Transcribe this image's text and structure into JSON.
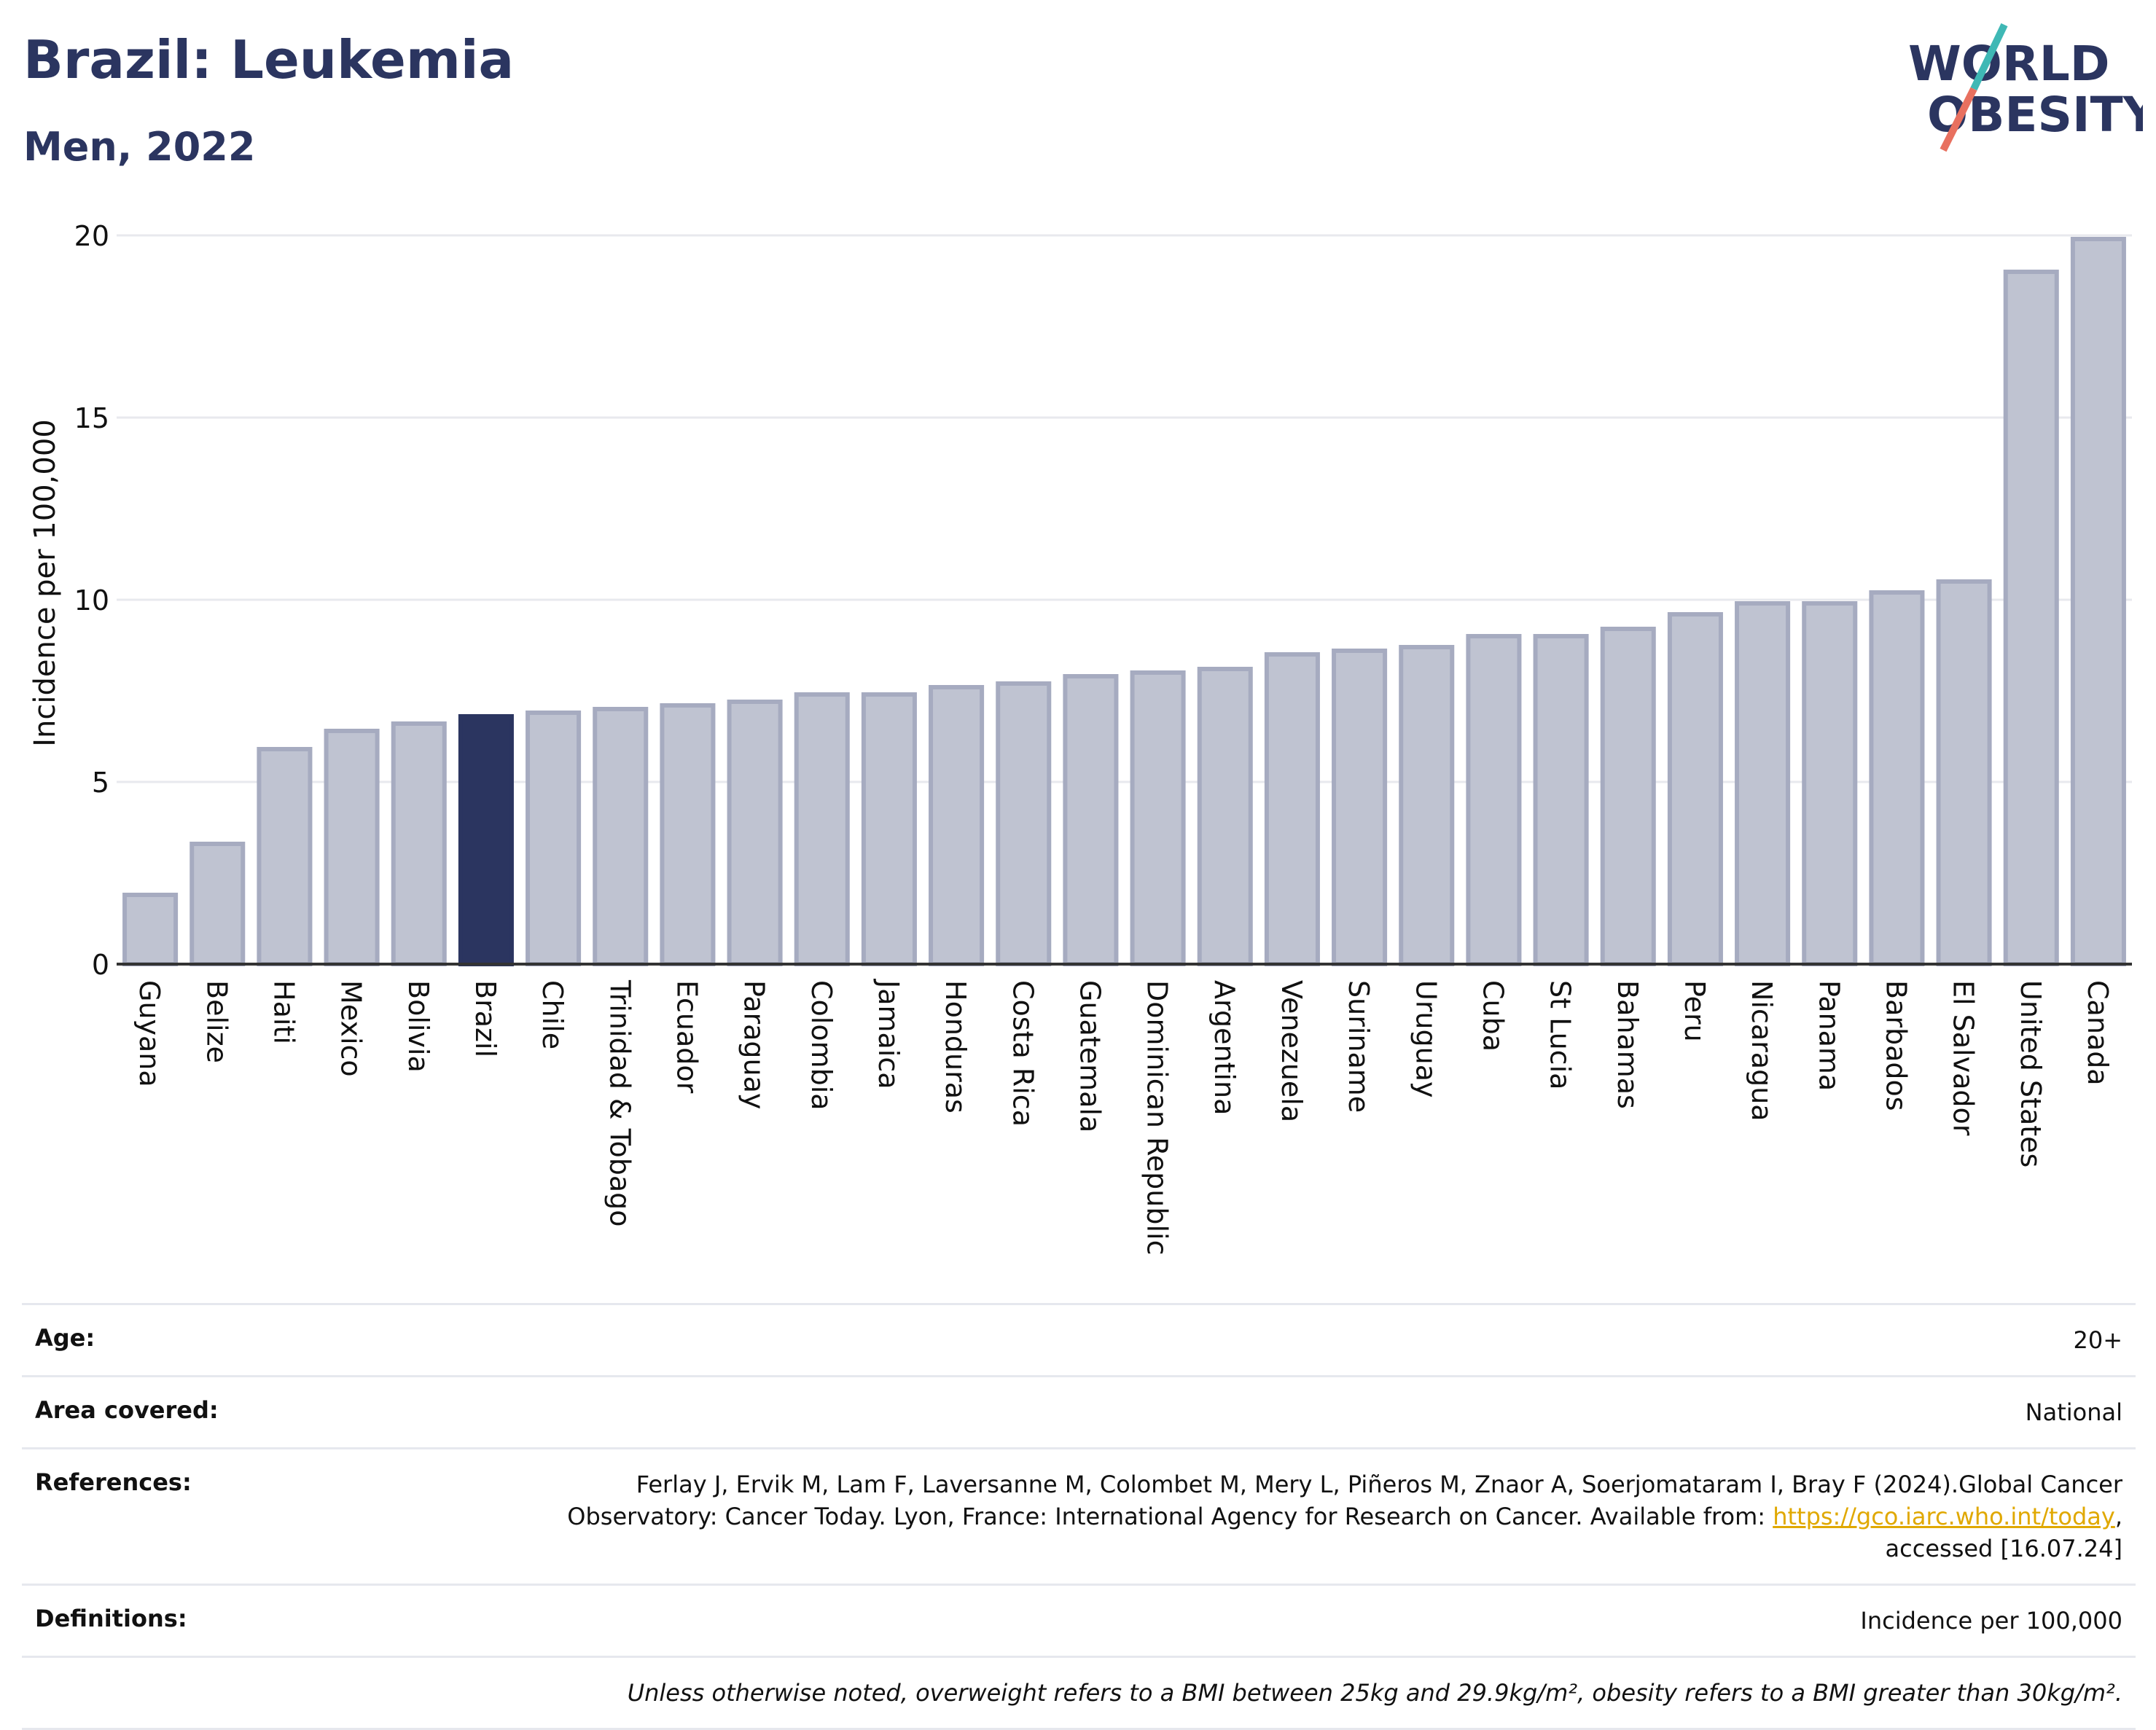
{
  "header": {
    "title": "Brazil: Leukemia",
    "subtitle": "Men, 2022",
    "logo_line1": "WORLD",
    "logo_line2": "OBESITY"
  },
  "colors": {
    "bar": "#bfc3d1",
    "bar_border": "#a6abc0",
    "highlight": "#2b3560",
    "title": "#2b3560",
    "link": "#e0a800",
    "logo_teal": "#3fb8b5",
    "logo_red": "#e8705f"
  },
  "chart_data": {
    "type": "bar",
    "ylabel": "Incidence per 100,000",
    "xlabel": "",
    "ylim": [
      0,
      20
    ],
    "yticks": [
      0,
      5,
      10,
      15,
      20
    ],
    "grid": true,
    "highlight": "Brazil",
    "categories": [
      "Guyana",
      "Belize",
      "Haiti",
      "Mexico",
      "Bolivia",
      "Brazil",
      "Chile",
      "Trinidad & Tobago",
      "Ecuador",
      "Paraguay",
      "Colombia",
      "Jamaica",
      "Honduras",
      "Costa Rica",
      "Guatemala",
      "Dominican Republic",
      "Argentina",
      "Venezuela",
      "Suriname",
      "Uruguay",
      "Cuba",
      "St Lucia",
      "Bahamas",
      "Peru",
      "Nicaragua",
      "Panama",
      "Barbados",
      "El Salvador",
      "United States",
      "Canada"
    ],
    "values": [
      1.9,
      3.3,
      5.9,
      6.4,
      6.6,
      6.8,
      6.9,
      7.0,
      7.1,
      7.2,
      7.4,
      7.4,
      7.6,
      7.7,
      7.9,
      8.0,
      8.1,
      8.5,
      8.6,
      8.7,
      9.0,
      9.0,
      9.2,
      9.6,
      9.9,
      9.9,
      10.2,
      10.5,
      19.0,
      19.9
    ]
  },
  "info": {
    "age_label": "Age:",
    "age_value": "20+",
    "area_label": "Area covered:",
    "area_value": "National",
    "ref_label": "References:",
    "ref_text1": "Ferlay J, Ervik M, Lam F, Laversanne M, Colombet M, Mery L, Piñeros M, Znaor A, Soerjomataram I, Bray F (2024).Global Cancer",
    "ref_text2": "Observatory: Cancer Today. Lyon, France: International Agency for Research on Cancer. Available from: ",
    "ref_link": "https://gco.iarc.who.int/today",
    "ref_text3": ",",
    "ref_text4": "accessed [16.07.24]",
    "def_label": "Definitions:",
    "def_value": "Incidence per 100,000",
    "note": "Unless otherwise noted, overweight refers to a BMI between 25kg and 29.9kg/m², obesity refers to a BMI greater than 30kg/m²."
  }
}
